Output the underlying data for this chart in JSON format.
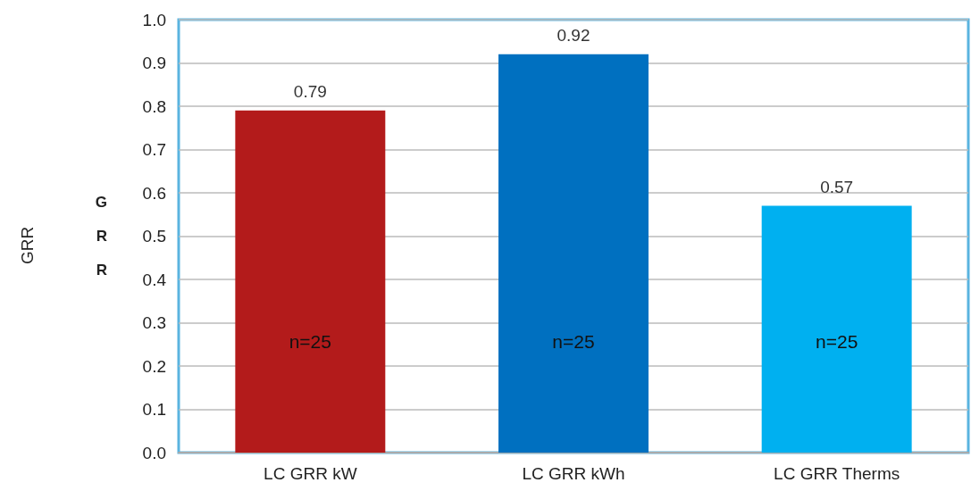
{
  "chart_data": {
    "type": "bar",
    "ylabel": "GRR",
    "categories": [
      "LC GRR kW",
      "LC GRR kWh",
      "LC GRR Therms"
    ],
    "values": [
      0.79,
      0.92,
      0.57
    ],
    "colors": [
      "#b31b1b",
      "#0070c0",
      "#00b0f0"
    ],
    "ylim": [
      0,
      1
    ],
    "yticks": [
      {
        "value": 0,
        "label": "0.0"
      },
      {
        "value": 0.1,
        "label": "0.1"
      },
      {
        "value": 0.2,
        "label": "0.2"
      },
      {
        "value": 0.3,
        "label": "0.3"
      },
      {
        "value": 0.4,
        "label": "0.4"
      },
      {
        "value": 0.5,
        "label": "0.5"
      },
      {
        "value": 0.6,
        "label": "0.6"
      },
      {
        "value": 0.7,
        "label": "0.7"
      },
      {
        "value": 0.8,
        "label": "0.8"
      },
      {
        "value": 0.9,
        "label": "0.9"
      },
      {
        "value": 1,
        "label": "1.0"
      }
    ],
    "grid": "y",
    "data_labels": true,
    "annotations": [
      "GRR",
      "n=25",
      "n=25",
      "n=25"
    ]
  }
}
